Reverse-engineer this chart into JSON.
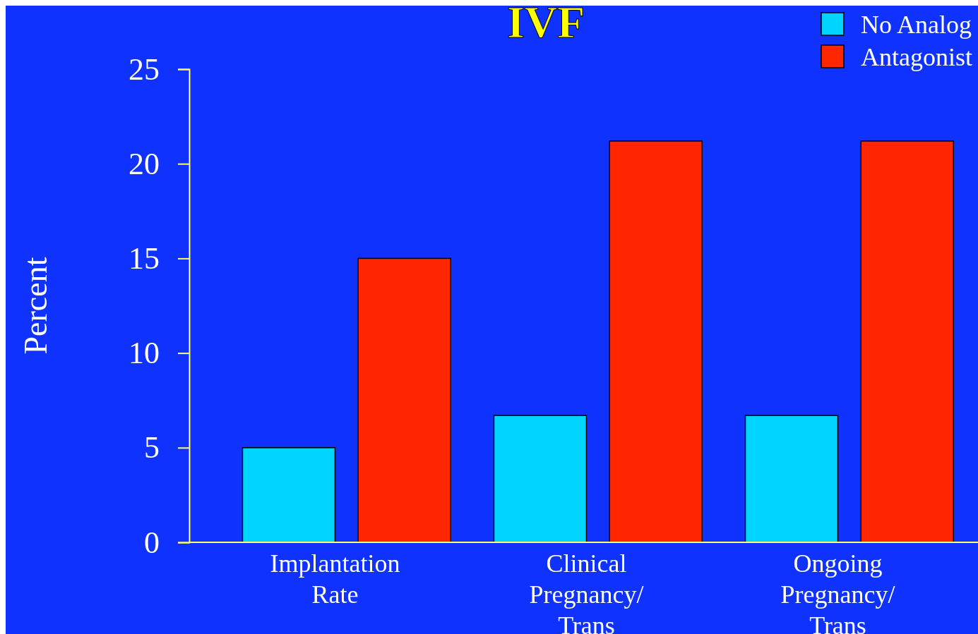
{
  "chart_data": {
    "type": "bar",
    "title": "IVF",
    "ylabel": "Percent",
    "categories": [
      "Implantation Rate",
      "Clinical Pregnancy/ Trans",
      "Ongoing Pregnancy/ Trans"
    ],
    "series": [
      {
        "name": "No Analog",
        "color": "#00d5ff",
        "values": [
          5,
          6.7,
          6.7
        ]
      },
      {
        "name": "Antagonist",
        "color": "#ff2600",
        "values": [
          15,
          21.2,
          21.2
        ]
      }
    ],
    "ylim": [
      0,
      25
    ],
    "yticks": [
      0,
      5,
      10,
      15,
      20,
      25
    ],
    "grid": false,
    "legend": "top right"
  }
}
